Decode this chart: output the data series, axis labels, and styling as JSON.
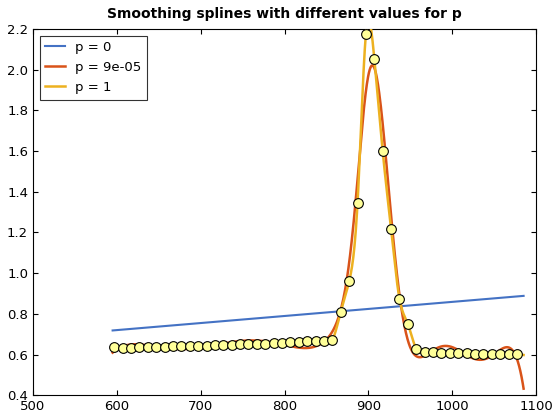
{
  "title": "Smoothing splines with different values for p",
  "xlim": [
    500,
    1100
  ],
  "ylim": [
    0.4,
    2.2
  ],
  "xticks": [
    500,
    600,
    700,
    800,
    900,
    1000,
    1100
  ],
  "yticks": [
    0.4,
    0.6,
    0.8,
    1.0,
    1.2,
    1.4,
    1.6,
    1.8,
    2.0,
    2.2
  ],
  "line_p0_color": "#4472C4",
  "line_p9e5_color": "#D95319",
  "line_p1_color": "#EDB120",
  "legend": [
    "p = 0",
    "p = 9e-05",
    "p = 1"
  ],
  "figsize": [
    5.6,
    4.2
  ],
  "dpi": 100
}
